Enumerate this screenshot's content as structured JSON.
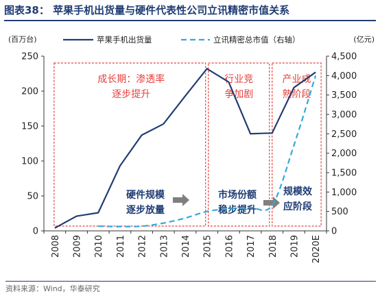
{
  "header": {
    "title": "图表38：  苹果手机出货量与硬件代表性公司立讯精密市值关系"
  },
  "footer": {
    "source": "资料来源：Wind，华泰研究"
  },
  "chart_data": {
    "type": "line",
    "categories": [
      "2008",
      "2009",
      "2010",
      "2011",
      "2012",
      "2013",
      "2014",
      "2015",
      "2016",
      "2017",
      "2018",
      "2019",
      "2020E"
    ],
    "left_axis": {
      "unit": "(百万台)",
      "ylim": [
        0,
        250
      ],
      "ticks": [
        0,
        50,
        100,
        150,
        200,
        250
      ]
    },
    "right_axis": {
      "unit": "(亿元)",
      "ylim": [
        0,
        4500
      ],
      "ticks": [
        "0",
        "500",
        "1,000",
        "1,500",
        "2,000",
        "2,500",
        "3,000",
        "3,500",
        "4,000",
        "4,500"
      ],
      "tick_values": [
        0,
        500,
        1000,
        1500,
        2000,
        2500,
        3000,
        3500,
        4000,
        4500
      ]
    },
    "series": [
      {
        "name": "苹果手机出货量",
        "axis": "left",
        "style": "solid",
        "color": "#1f3c73",
        "values": [
          4,
          21,
          26,
          93,
          137,
          153,
          193,
          232,
          213,
          139,
          140,
          205,
          227
        ]
      },
      {
        "name": "立讯精密总市值（右轴）",
        "axis": "right",
        "style": "dashed",
        "color": "#34a8d8",
        "values": [
          null,
          null,
          120,
          110,
          120,
          200,
          330,
          500,
          570,
          600,
          660,
          2200,
          4000
        ]
      }
    ],
    "legend_placement": "top",
    "stages": [
      {
        "label_lines": [
          "成长期：渗透率",
          "逐步提升"
        ],
        "effect_lines": [
          "硬件规模",
          "逐步放量"
        ]
      },
      {
        "label_lines": [
          "行业竞",
          "争加剧"
        ],
        "effect_lines": [
          "市场份额",
          "稳步提升"
        ]
      },
      {
        "label_lines": [
          "产业成",
          "熟阶段"
        ],
        "effect_lines": [
          "规模效",
          "应阶段"
        ]
      }
    ],
    "stage_box_color": "#e8403c"
  }
}
